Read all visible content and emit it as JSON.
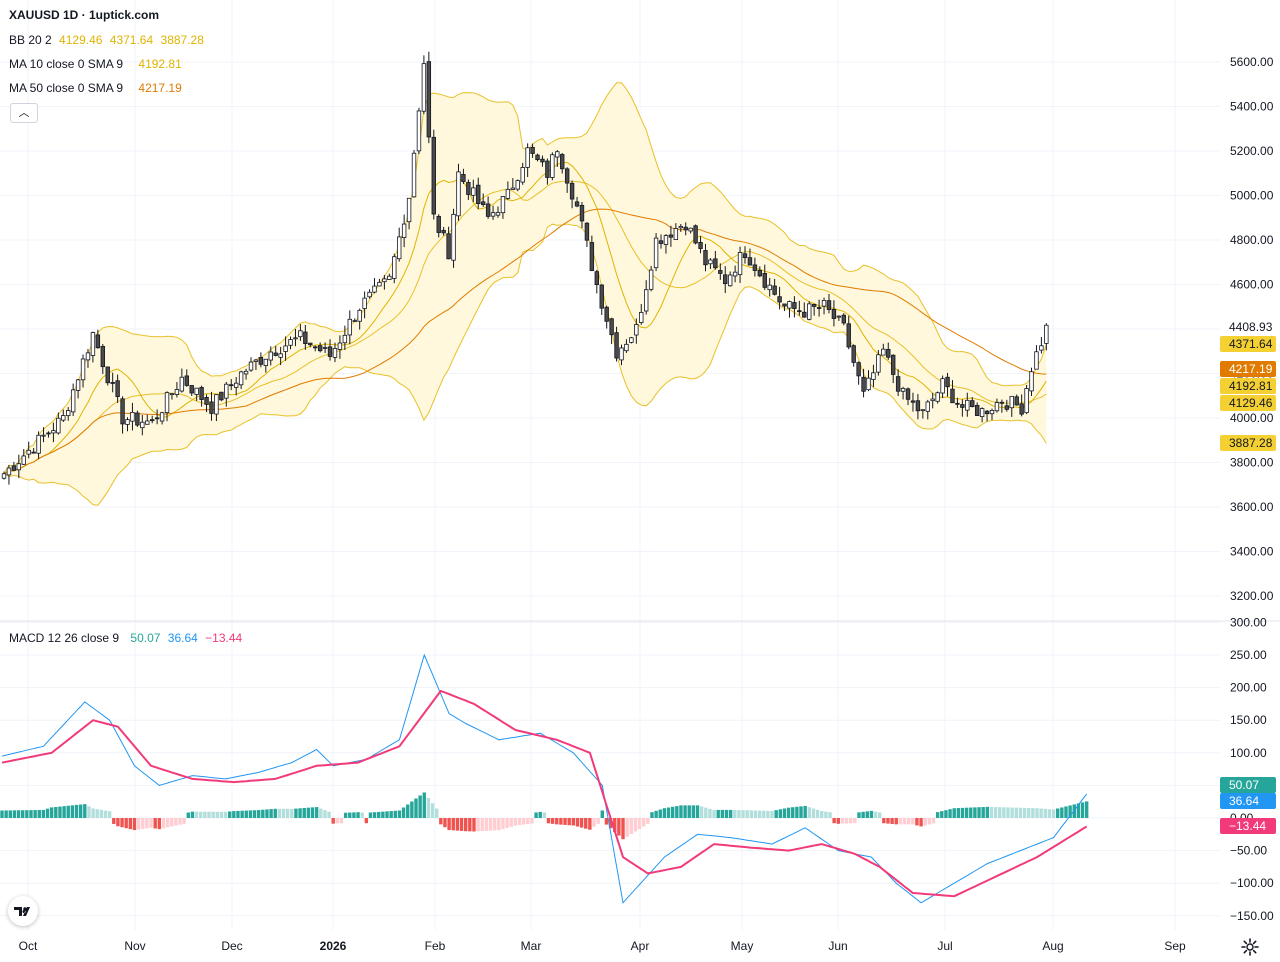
{
  "header": {
    "symbol_title": "XAUUSD 1D · 1uptick.com"
  },
  "legends": {
    "bb": {
      "label": "BB 20 2",
      "values": [
        "4129.46",
        "4371.64",
        "3887.28"
      ],
      "colors": [
        "#e0b400",
        "#e0b400",
        "#e0b400"
      ]
    },
    "ma10": {
      "label": "MA 10 close 0 SMA 9",
      "values": [
        "4192.81"
      ],
      "colors": [
        "#e0b400"
      ]
    },
    "ma50": {
      "label": "MA 50 close 0 SMA 9",
      "values": [
        "4217.19"
      ],
      "colors": [
        "#e07b00"
      ]
    },
    "macd": {
      "label": "MACD 12 26 close 9",
      "values": [
        "50.07",
        "36.64",
        "−13.44"
      ],
      "colors": [
        "#26a69a",
        "#2196f3",
        "#f23a7a"
      ]
    }
  },
  "colors": {
    "up": "#ffffff",
    "down": "#4a4a4a",
    "wick": "#131722",
    "bb_fill": "#fff8dc",
    "bb_line": "#e8c02a",
    "ma10": "#e0b400",
    "ma50": "#e07b00",
    "macd_line": "#2196f3",
    "signal_line": "#f23a7a",
    "hist_pos_strong": "#26a69a",
    "hist_pos_weak": "#b2dfdb",
    "hist_neg_strong": "#ef5350",
    "hist_neg_weak": "#ffcdd2"
  },
  "icons": {
    "collapse": "chevron-up-icon",
    "logo": "tradingview-logo-icon",
    "settings": "gear-icon"
  },
  "chart_data": [
    {
      "type": "candlestick",
      "title": "XAUUSD 1D · 1uptick.com",
      "y_ticks": [
        "5600.00",
        "5400.00",
        "5200.00",
        "5000.00",
        "4800.00",
        "4600.00",
        "4400.00",
        "4200.00",
        "4000.00",
        "3800.00",
        "3600.00",
        "3400.00",
        "3200.00"
      ],
      "y_tick_values": [
        5600,
        5400,
        5200,
        5000,
        4800,
        4600,
        4400,
        4200,
        4000,
        3800,
        3600,
        3400,
        3200
      ],
      "ylim": [
        3140,
        5690
      ],
      "x_labels": [
        "Oct",
        "Nov",
        "Dec",
        "2026",
        "Feb",
        "Mar",
        "Apr",
        "May",
        "Jun",
        "Jul",
        "Aug",
        "Sep"
      ],
      "last_price": "4408.93",
      "price_badges": [
        {
          "label": "4408.93",
          "value": 4408.93,
          "color": "#ffffff",
          "text_color": "#131722"
        },
        {
          "label": "4371.64",
          "value": 4371.64,
          "color": "#f5d033",
          "text_color": "#131722"
        },
        {
          "label": "4217.19",
          "value": 4217.19,
          "color": "#e07b00",
          "text_color": "#ffffff"
        },
        {
          "label": "4192.81",
          "value": 4192.81,
          "color": "#f5d033",
          "text_color": "#131722"
        },
        {
          "label": "4129.46",
          "value": 4129.46,
          "color": "#f5d033",
          "text_color": "#131722"
        },
        {
          "label": "3887.28",
          "value": 3887.28,
          "color": "#f5d033",
          "text_color": "#131722"
        }
      ],
      "close_keypoints": [
        [
          0,
          3750
        ],
        [
          12,
          4000
        ],
        [
          18,
          4380
        ],
        [
          24,
          4000
        ],
        [
          30,
          3980
        ],
        [
          36,
          4180
        ],
        [
          42,
          4050
        ],
        [
          48,
          4200
        ],
        [
          54,
          4300
        ],
        [
          60,
          4360
        ],
        [
          66,
          4280
        ],
        [
          72,
          4500
        ],
        [
          78,
          4620
        ],
        [
          82,
          5000
        ],
        [
          85,
          5600
        ],
        [
          87,
          4900
        ],
        [
          90,
          4750
        ],
        [
          92,
          5100
        ],
        [
          98,
          4900
        ],
        [
          102,
          5000
        ],
        [
          106,
          5200
        ],
        [
          110,
          5100
        ],
        [
          112,
          5220
        ],
        [
          116,
          4950
        ],
        [
          120,
          4600
        ],
        [
          124,
          4300
        ],
        [
          128,
          4400
        ],
        [
          132,
          4800
        ],
        [
          138,
          4880
        ],
        [
          142,
          4700
        ],
        [
          146,
          4620
        ],
        [
          150,
          4750
        ],
        [
          154,
          4620
        ],
        [
          158,
          4500
        ],
        [
          162,
          4480
        ],
        [
          166,
          4500
        ],
        [
          170,
          4400
        ],
        [
          174,
          4100
        ],
        [
          178,
          4300
        ],
        [
          182,
          4100
        ],
        [
          186,
          4020
        ],
        [
          190,
          4150
        ],
        [
          194,
          4050
        ],
        [
          198,
          4030
        ],
        [
          202,
          4080
        ],
        [
          206,
          4050
        ],
        [
          208,
          4230
        ],
        [
          211,
          4400
        ]
      ],
      "series": [
        {
          "name": "BB 20 2",
          "values_last": [
            4129.46,
            4371.64,
            3887.28
          ]
        },
        {
          "name": "MA 10 close 0 SMA 9",
          "values_last": [
            4192.81
          ]
        },
        {
          "name": "MA 50 close 0 SMA 9",
          "values_last": [
            4217.19
          ]
        }
      ]
    },
    {
      "type": "line",
      "title": "MACD 12 26 close 9",
      "y_ticks": [
        "300.00",
        "250.00",
        "200.00",
        "150.00",
        "100.00",
        "50.00",
        "0.00",
        "−50.00",
        "−100.00",
        "−150.00"
      ],
      "y_tick_values": [
        300,
        250,
        200,
        150,
        100,
        50,
        0,
        -50,
        -100,
        -150
      ],
      "ylim": [
        -155,
        305
      ],
      "macd_badges": [
        {
          "label": "50.07",
          "value": 50.07,
          "color": "#26a69a"
        },
        {
          "label": "36.64",
          "value": 36.64,
          "color": "#2196f3"
        },
        {
          "label": "−13.44",
          "value": -13.44,
          "color": "#f23a7a"
        }
      ],
      "macd_keypoints": [
        [
          0,
          95
        ],
        [
          10,
          110
        ],
        [
          20,
          178
        ],
        [
          26,
          150
        ],
        [
          32,
          80
        ],
        [
          38,
          50
        ],
        [
          46,
          65
        ],
        [
          54,
          60
        ],
        [
          62,
          70
        ],
        [
          70,
          85
        ],
        [
          76,
          105
        ],
        [
          80,
          80
        ],
        [
          88,
          90
        ],
        [
          96,
          120
        ],
        [
          102,
          250
        ],
        [
          108,
          160
        ],
        [
          112,
          145
        ],
        [
          120,
          120
        ],
        [
          130,
          130
        ],
        [
          138,
          100
        ],
        [
          145,
          50
        ],
        [
          150,
          -130
        ],
        [
          160,
          -60
        ],
        [
          168,
          -25
        ],
        [
          176,
          -30
        ],
        [
          186,
          -40
        ],
        [
          194,
          -15
        ],
        [
          202,
          -50
        ],
        [
          210,
          -60
        ],
        [
          216,
          -100
        ],
        [
          222,
          -130
        ],
        [
          230,
          -100
        ],
        [
          238,
          -70
        ],
        [
          246,
          -50
        ],
        [
          254,
          -30
        ],
        [
          262,
          37
        ]
      ],
      "signal_keypoints": [
        [
          0,
          85
        ],
        [
          12,
          100
        ],
        [
          22,
          150
        ],
        [
          28,
          140
        ],
        [
          36,
          80
        ],
        [
          46,
          60
        ],
        [
          56,
          55
        ],
        [
          66,
          60
        ],
        [
          76,
          80
        ],
        [
          86,
          85
        ],
        [
          96,
          110
        ],
        [
          106,
          195
        ],
        [
          114,
          175
        ],
        [
          124,
          135
        ],
        [
          134,
          120
        ],
        [
          142,
          100
        ],
        [
          150,
          -60
        ],
        [
          156,
          -85
        ],
        [
          164,
          -75
        ],
        [
          172,
          -40
        ],
        [
          180,
          -45
        ],
        [
          190,
          -50
        ],
        [
          198,
          -40
        ],
        [
          206,
          -55
        ],
        [
          212,
          -75
        ],
        [
          220,
          -115
        ],
        [
          230,
          -120
        ],
        [
          240,
          -90
        ],
        [
          250,
          -60
        ],
        [
          262,
          -13
        ]
      ]
    }
  ]
}
